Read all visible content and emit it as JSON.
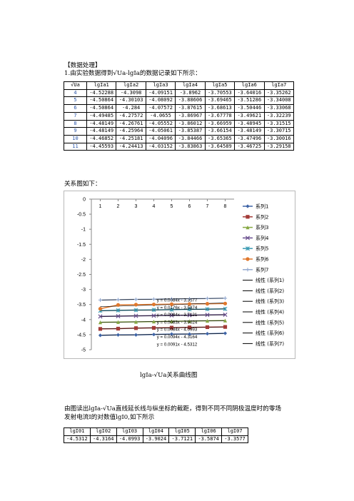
{
  "section_title": "【数据处理】",
  "intro_line": "1.由实验数据得到√Ua-lgIa的数据记录如下所示：",
  "table1": {
    "headers": [
      "√Ua",
      "lgIa1",
      "lgIa2",
      "lgIa3",
      "lgIa4",
      "lgIa5",
      "lgIa6",
      "lgIa7"
    ],
    "rows": [
      [
        "4",
        "-4.52288",
        "-4.3098",
        "-4.09151",
        "-3.8962",
        "-3.70553",
        "-3.64016",
        "-3.35262"
      ],
      [
        "5",
        "-4.50864",
        "-4.30103",
        "-4.08092",
        "-3.88606",
        "-3.69465",
        "-3.51286",
        "-3.34008"
      ],
      [
        "6",
        "-4.50864",
        "-4.284",
        "-4.07572",
        "-3.87615",
        "-3.68613",
        "-3.50446",
        "-3.33068"
      ],
      [
        "7",
        "-4.49485",
        "-4.27572",
        "-4.0655",
        "-3.86967",
        "-3.67778",
        "-3.49621",
        "-3.32239"
      ],
      [
        "8",
        "-4.48149",
        "-4.26761",
        "-4.05552",
        "-3.86012",
        "-3.66959",
        "-3.48945",
        "-3.31515"
      ],
      [
        "9",
        "-4.48149",
        "-4.25964",
        "-4.05061",
        "-3.85387",
        "-3.66154",
        "-3.48149",
        "-3.30715"
      ],
      [
        "10",
        "-4.46852",
        "-4.25181",
        "-4.04096",
        "-3.84466",
        "-3.65365",
        "-3.47496",
        "-3.30016"
      ],
      [
        "11",
        "-4.45593",
        "-4.24413",
        "-4.03152",
        "-3.83863",
        "-3.64589",
        "-3.46725",
        "-3.29158"
      ]
    ]
  },
  "relation_label": "关系图如下：",
  "chart_data": {
    "type": "line",
    "x": [
      4,
      5,
      6,
      7,
      8,
      9,
      10,
      11
    ],
    "x_axis_ticks": [
      1,
      2,
      3,
      4,
      5,
      6,
      7,
      8
    ],
    "y_axis_ticks": [
      "0",
      "-0.5",
      "-1",
      "-1.5",
      "-2",
      "-2.5",
      "-3",
      "-3.5",
      "-4",
      "-4.5",
      "-5"
    ],
    "ylim": [
      -5,
      0
    ],
    "xaxis_position": "top",
    "series": [
      {
        "name": "系列1",
        "values": [
          -4.52288,
          -4.50864,
          -4.50864,
          -4.49485,
          -4.48149,
          -4.48149,
          -4.46852,
          -4.45593
        ],
        "color": "#3e64a6",
        "marker": "diamond"
      },
      {
        "name": "系列2",
        "values": [
          -4.3098,
          -4.30103,
          -4.284,
          -4.27572,
          -4.26761,
          -4.25964,
          -4.25181,
          -4.24413
        ],
        "color": "#a33b38",
        "marker": "square"
      },
      {
        "name": "系列3",
        "values": [
          -4.09151,
          -4.08092,
          -4.07572,
          -4.0655,
          -4.05552,
          -4.05061,
          -4.04096,
          -4.03152
        ],
        "color": "#86a843",
        "marker": "triangle"
      },
      {
        "name": "系列4",
        "values": [
          -3.8962,
          -3.88606,
          -3.87615,
          -3.86967,
          -3.86012,
          -3.85387,
          -3.84466,
          -3.83863
        ],
        "color": "#6a4f8f",
        "marker": "x"
      },
      {
        "name": "系列5",
        "values": [
          -3.70553,
          -3.69465,
          -3.68613,
          -3.67778,
          -3.66959,
          -3.66154,
          -3.65365,
          -3.64589
        ],
        "color": "#3b9bb3",
        "marker": "star"
      },
      {
        "name": "系列6",
        "values": [
          -3.64016,
          -3.51286,
          -3.50446,
          -3.49621,
          -3.48945,
          -3.48149,
          -3.47496,
          -3.46725
        ],
        "color": "#e0782d",
        "marker": "circle"
      },
      {
        "name": "系列7",
        "values": [
          -3.35262,
          -3.34008,
          -3.33068,
          -3.32239,
          -3.31515,
          -3.30715,
          -3.30016,
          -3.29158
        ],
        "color": "#93a9cf",
        "marker": "plus"
      }
    ],
    "trendline_legend": [
      "线性 (系列1)",
      "线性 (系列2)",
      "线性 (系列3)",
      "线性 (系列4)",
      "线性 (系列5)",
      "线性 (系列6)",
      "线性 (系列7)"
    ],
    "equations": [
      "y = 0.0084x - 3.3577",
      "y = 0.0176x - 3.5874",
      "y = 0.0084x - 3.7121",
      "y = 0.0083x - 3.9024",
      "y = 0.0084x - 4.0993",
      "y = 0.0094x - 4.3164",
      "y = 0.0091x - 4.5312"
    ],
    "legend": "right"
  },
  "chart_caption": "lgIa-√Ua关系曲线图",
  "paragraph_line1": "由图读出lgIa-√Ua直线延长线与纵坐标的截距，得到不同不同阴极温度时的零场",
  "paragraph_line2": "发射电流I的对数值lgI0,如下所示",
  "table2": {
    "headers": [
      "lgI01",
      "lgI02",
      "lgI03",
      "lgI04",
      "lgI05",
      "lgI06",
      "lgI07"
    ],
    "values": [
      "-4.5312",
      "-4.3164",
      "-4.0993",
      "-3.9024",
      "-3.7121",
      "-3.5874",
      "-3.3577"
    ]
  }
}
